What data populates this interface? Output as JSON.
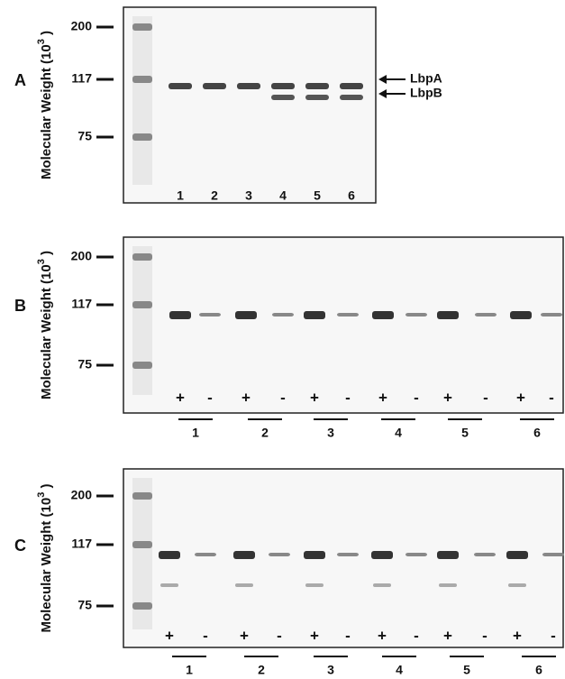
{
  "panels": [
    {
      "label": "A",
      "y_label": {
        "text": "Molecular Weight (10",
        "superscript": "3",
        "close": " )"
      },
      "markers": [
        "200",
        "117",
        "75"
      ],
      "lanes": [
        "1",
        "2",
        "3",
        "4",
        "5",
        "6"
      ],
      "arrows": [
        "LbpA",
        "LbpB"
      ]
    },
    {
      "label": "B",
      "y_label": {
        "text": "Molecular Weight (10",
        "superscript": "3",
        "close": " )"
      },
      "markers": [
        "200",
        "117",
        "75"
      ],
      "signs": [
        "+",
        "-",
        "+",
        "-",
        "+",
        "-",
        "+",
        "-",
        "+",
        "-",
        "+",
        "-"
      ],
      "lanes": [
        "1",
        "2",
        "3",
        "4",
        "5",
        "6"
      ]
    },
    {
      "label": "C",
      "y_label": {
        "text": "Molecular Weight (10",
        "superscript": "3",
        "close": " )"
      },
      "markers": [
        "200",
        "117",
        "75"
      ],
      "signs": [
        "+",
        "-",
        "+",
        "-",
        "+",
        "-",
        "+",
        "-",
        "+",
        "-",
        "+",
        "-"
      ],
      "lanes": [
        "1",
        "2",
        "3",
        "4",
        "5",
        "6"
      ]
    }
  ]
}
